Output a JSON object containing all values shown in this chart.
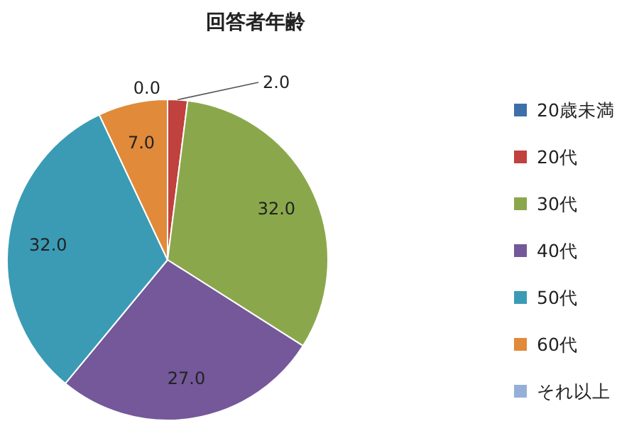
{
  "chart_data": {
    "type": "pie",
    "title": "回答者年齢",
    "categories": [
      "20歳未満",
      "20代",
      "30代",
      "40代",
      "50代",
      "60代",
      "それ以上"
    ],
    "values": [
      0,
      2,
      32,
      27,
      32,
      7,
      0
    ],
    "value_labels": [
      "0.0",
      "2.0",
      "32.0",
      "27.0",
      "32.0",
      "7.0",
      null
    ],
    "colors": [
      "#3f6fa8",
      "#c0413d",
      "#8aa84b",
      "#74589a",
      "#3b9bb5",
      "#e08a3a",
      "#95b0d8"
    ],
    "legend": "right"
  }
}
